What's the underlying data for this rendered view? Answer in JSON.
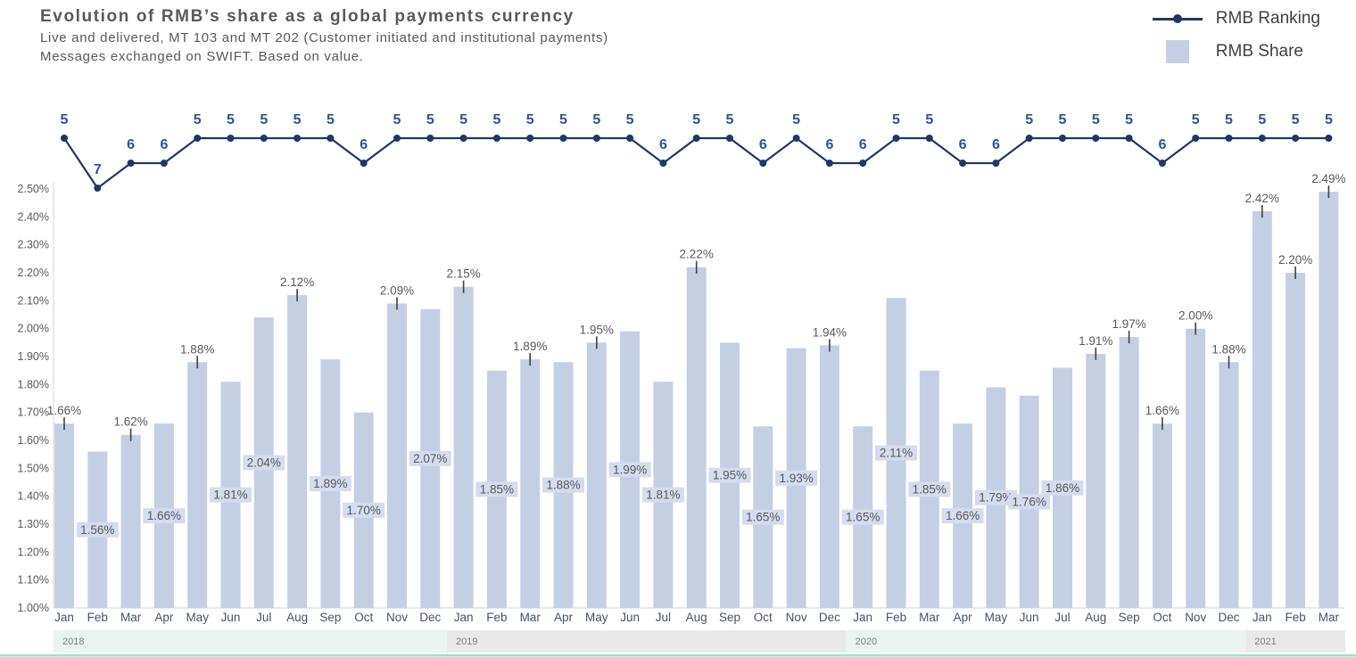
{
  "colors": {
    "title_text": "#595959",
    "subtitle_text": "#595959",
    "legend_text": "#404040",
    "bar_fill": "#c5cfe4",
    "bar_label_bg": "#d4dcee",
    "value_label": "#595959",
    "ranking_line": "#1f3864",
    "ranking_label": "#2e5395",
    "axis_line": "#d6d6d6",
    "axis_label": "#595959",
    "month_label": "#44546a",
    "bar_tick": "#404040",
    "year_band_teal": "#e9f4f1",
    "year_band_gray": "#e9e9e9",
    "year_label": "#7f7f7f",
    "footer_rule": "#a9d8cc"
  },
  "chart_data": {
    "type": "combo",
    "title": "Evolution of RMB’s share as a global payments currency",
    "subtitle1": "Live and delivered, MT 103 and MT 202 (Customer initiated and institutional payments)",
    "subtitle2": "Messages exchanged on SWIFT. Based on value.",
    "legend_position": "top-right",
    "grid": false,
    "categories": [
      "Jan",
      "Feb",
      "Mar",
      "Apr",
      "May",
      "Jun",
      "Jul",
      "Aug",
      "Sep",
      "Oct",
      "Nov",
      "Dec",
      "Jan",
      "Feb",
      "Mar",
      "Apr",
      "May",
      "Jun",
      "Jul",
      "Aug",
      "Sep",
      "Oct",
      "Nov",
      "Dec",
      "Jan",
      "Feb",
      "Mar",
      "Apr",
      "May",
      "Jun",
      "Jul",
      "Aug",
      "Sep",
      "Oct",
      "Nov",
      "Dec",
      "Jan",
      "Feb",
      "Mar"
    ],
    "year_bands": [
      {
        "label": "2018",
        "start": 0,
        "count": 12,
        "tone": "teal"
      },
      {
        "label": "2019",
        "start": 12,
        "count": 12,
        "tone": "gray"
      },
      {
        "label": "2020",
        "start": 24,
        "count": 12,
        "tone": "teal"
      },
      {
        "label": "2021",
        "start": 36,
        "count": 3,
        "tone": "gray"
      }
    ],
    "y_axis": {
      "min": 1.0,
      "max": 2.5,
      "step": 0.1,
      "unit": "%",
      "tick_labels": [
        "1.00%",
        "1.10%",
        "1.20%",
        "1.30%",
        "1.40%",
        "1.50%",
        "1.60%",
        "1.70%",
        "1.80%",
        "1.90%",
        "2.00%",
        "2.10%",
        "2.20%",
        "2.30%",
        "2.40%",
        "2.50%"
      ]
    },
    "series": [
      {
        "name": "RMB Ranking",
        "type": "line",
        "values": [
          5,
          7,
          6,
          6,
          5,
          5,
          5,
          5,
          5,
          6,
          5,
          5,
          5,
          5,
          5,
          5,
          5,
          5,
          6,
          5,
          5,
          6,
          5,
          6,
          6,
          5,
          5,
          6,
          6,
          5,
          5,
          5,
          5,
          6,
          5,
          5,
          5,
          5,
          5
        ]
      },
      {
        "name": "RMB Share",
        "type": "bar",
        "unit": "%",
        "values": [
          1.66,
          1.56,
          1.62,
          1.66,
          1.88,
          1.81,
          2.04,
          2.12,
          1.89,
          1.7,
          2.09,
          2.07,
          2.15,
          1.85,
          1.89,
          1.88,
          1.95,
          1.99,
          1.81,
          2.22,
          1.95,
          1.65,
          1.93,
          1.94,
          1.65,
          2.11,
          1.85,
          1.66,
          1.79,
          1.76,
          1.86,
          1.91,
          1.97,
          1.66,
          2.0,
          1.88,
          2.42,
          2.2,
          2.49
        ],
        "label_position": [
          "above",
          "inside",
          "above",
          "inside",
          "above",
          "inside",
          "inside",
          "above",
          "inside",
          "inside",
          "above",
          "inside",
          "above",
          "inside",
          "above",
          "inside",
          "above",
          "inside",
          "inside",
          "above",
          "inside",
          "inside",
          "inside",
          "above",
          "inside",
          "inside",
          "inside",
          "inside",
          "inside",
          "inside",
          "inside",
          "above",
          "above",
          "above",
          "above",
          "above",
          "above",
          "above",
          "above"
        ]
      }
    ]
  }
}
